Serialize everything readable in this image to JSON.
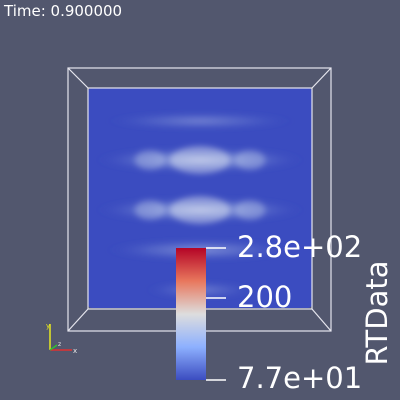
{
  "time_annotation": "Time: 0.900000",
  "scalar_bar": {
    "title": "RTData",
    "max_label": "2.8e+02",
    "mid_label": "200",
    "min_label": "7.7e+01"
  },
  "orientation_axes": {
    "x_label": "x",
    "y_label": "y",
    "z_label": "z"
  },
  "colors": {
    "background": "#52576e",
    "slice_base": "#3b4cc0",
    "colormap_high": "#b40426",
    "colormap_mid": "#dddddd",
    "colormap_low": "#3b4cc0"
  }
}
